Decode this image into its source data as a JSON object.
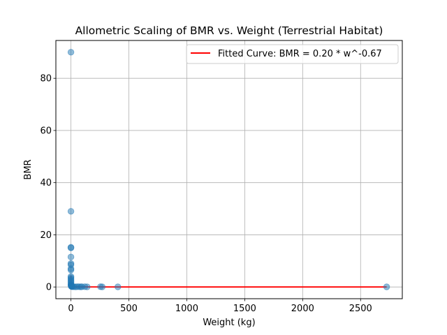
{
  "chart_data": {
    "type": "scatter",
    "title": "Allometric Scaling of BMR vs. Weight (Terrestrial Habitat)",
    "xlabel": "Weight (kg)",
    "ylabel": "BMR",
    "xlim": [
      -130,
      2860
    ],
    "ylim": [
      -4.5,
      94.5
    ],
    "xticks": [
      0,
      500,
      1000,
      1500,
      2000,
      2500
    ],
    "yticks": [
      0,
      20,
      40,
      60,
      80
    ],
    "grid": true,
    "legend": {
      "position": "upper right",
      "entries": [
        "Fitted Curve: BMR = 0.20 * w^-0.67"
      ]
    },
    "colors": {
      "points": "#1f77b4",
      "fit": "#ff0000"
    },
    "series": [
      {
        "kind": "scatter",
        "points": [
          [
            0.01,
            90.0
          ],
          [
            0.02,
            29.0
          ],
          [
            0.03,
            15.2
          ],
          [
            0.04,
            15.0
          ],
          [
            0.05,
            11.5
          ],
          [
            0.06,
            9.0
          ],
          [
            0.07,
            8.5
          ],
          [
            0.08,
            7.0
          ],
          [
            0.1,
            6.5
          ],
          [
            0.12,
            4.0
          ],
          [
            0.15,
            3.5
          ],
          [
            0.2,
            3.0
          ],
          [
            0.25,
            2.5
          ],
          [
            0.3,
            2.0
          ],
          [
            0.4,
            1.5
          ],
          [
            0.5,
            1.0
          ],
          [
            0.8,
            0.8
          ],
          [
            1,
            0.6
          ],
          [
            2,
            0.4
          ],
          [
            3,
            0.3
          ],
          [
            5,
            0.2
          ],
          [
            8,
            0.15
          ],
          [
            15,
            0.1
          ],
          [
            25,
            0.1
          ],
          [
            40,
            0.05
          ],
          [
            55,
            0.1
          ],
          [
            70,
            0.1
          ],
          [
            85,
            0.05
          ],
          [
            95,
            0.1
          ],
          [
            120,
            0.1
          ],
          [
            140,
            0.05
          ],
          [
            255,
            0.1
          ],
          [
            270,
            0.05
          ],
          [
            405,
            0.05
          ],
          [
            2725,
            0.05
          ]
        ]
      },
      {
        "kind": "line",
        "name": "Fitted Curve: BMR = 0.20 * w^-0.67",
        "a": 0.2,
        "b": -0.67,
        "x_range": [
          0.01,
          2725
        ],
        "points": [
          [
            0.01,
            4.3
          ],
          [
            0.02,
            2.7
          ],
          [
            0.05,
            1.5
          ],
          [
            0.1,
            0.94
          ],
          [
            0.2,
            0.59
          ],
          [
            0.5,
            0.32
          ],
          [
            1,
            0.2
          ],
          [
            2,
            0.13
          ],
          [
            5,
            0.068
          ],
          [
            10,
            0.043
          ],
          [
            50,
            0.015
          ],
          [
            100,
            0.009
          ],
          [
            500,
            0.003
          ],
          [
            1000,
            0.002
          ],
          [
            2725,
            0.001
          ]
        ]
      }
    ]
  }
}
